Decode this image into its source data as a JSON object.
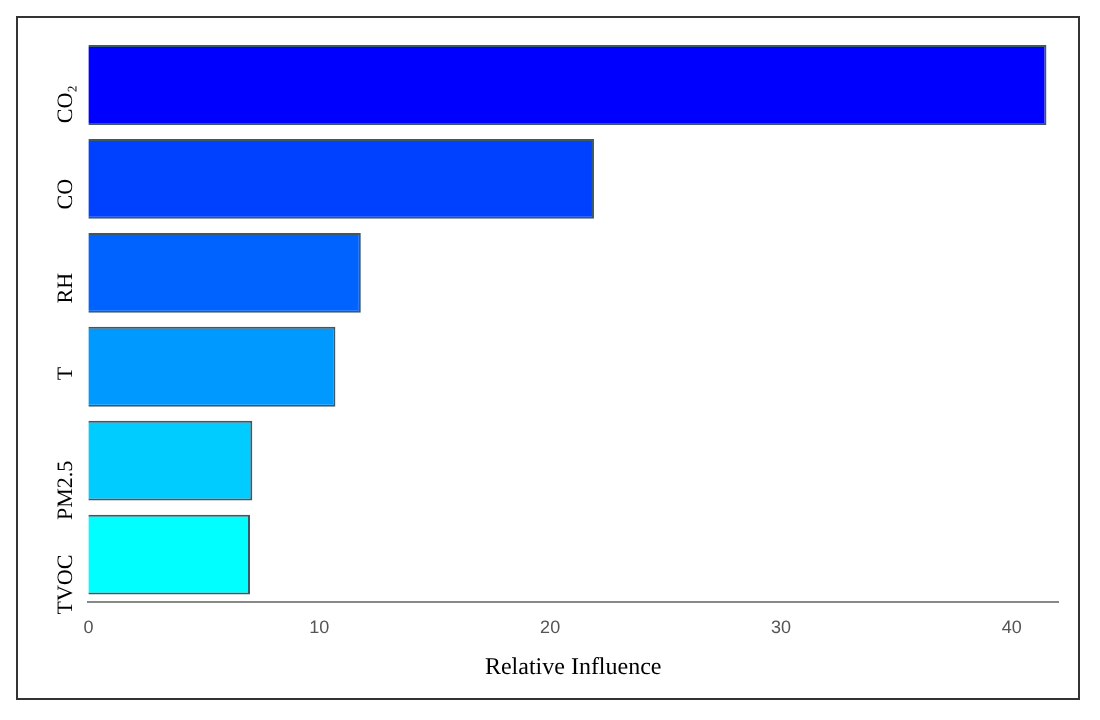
{
  "chart_data": {
    "type": "bar",
    "orientation": "horizontal",
    "xlabel": "Relative Influence",
    "categories": [
      "CO₂",
      "CO",
      "RH",
      "T",
      "PM2.5",
      "TVOC"
    ],
    "values": [
      41.5,
      21.9,
      11.8,
      10.7,
      7.1,
      7.0
    ],
    "colors": [
      "#0000ff",
      "#0040ff",
      "#0062ff",
      "#0099ff",
      "#00ccff",
      "#00ffff"
    ],
    "xlim": [
      0,
      42
    ],
    "xticks": [
      0,
      10,
      20,
      30,
      40
    ],
    "grid": false,
    "legend": false
  }
}
